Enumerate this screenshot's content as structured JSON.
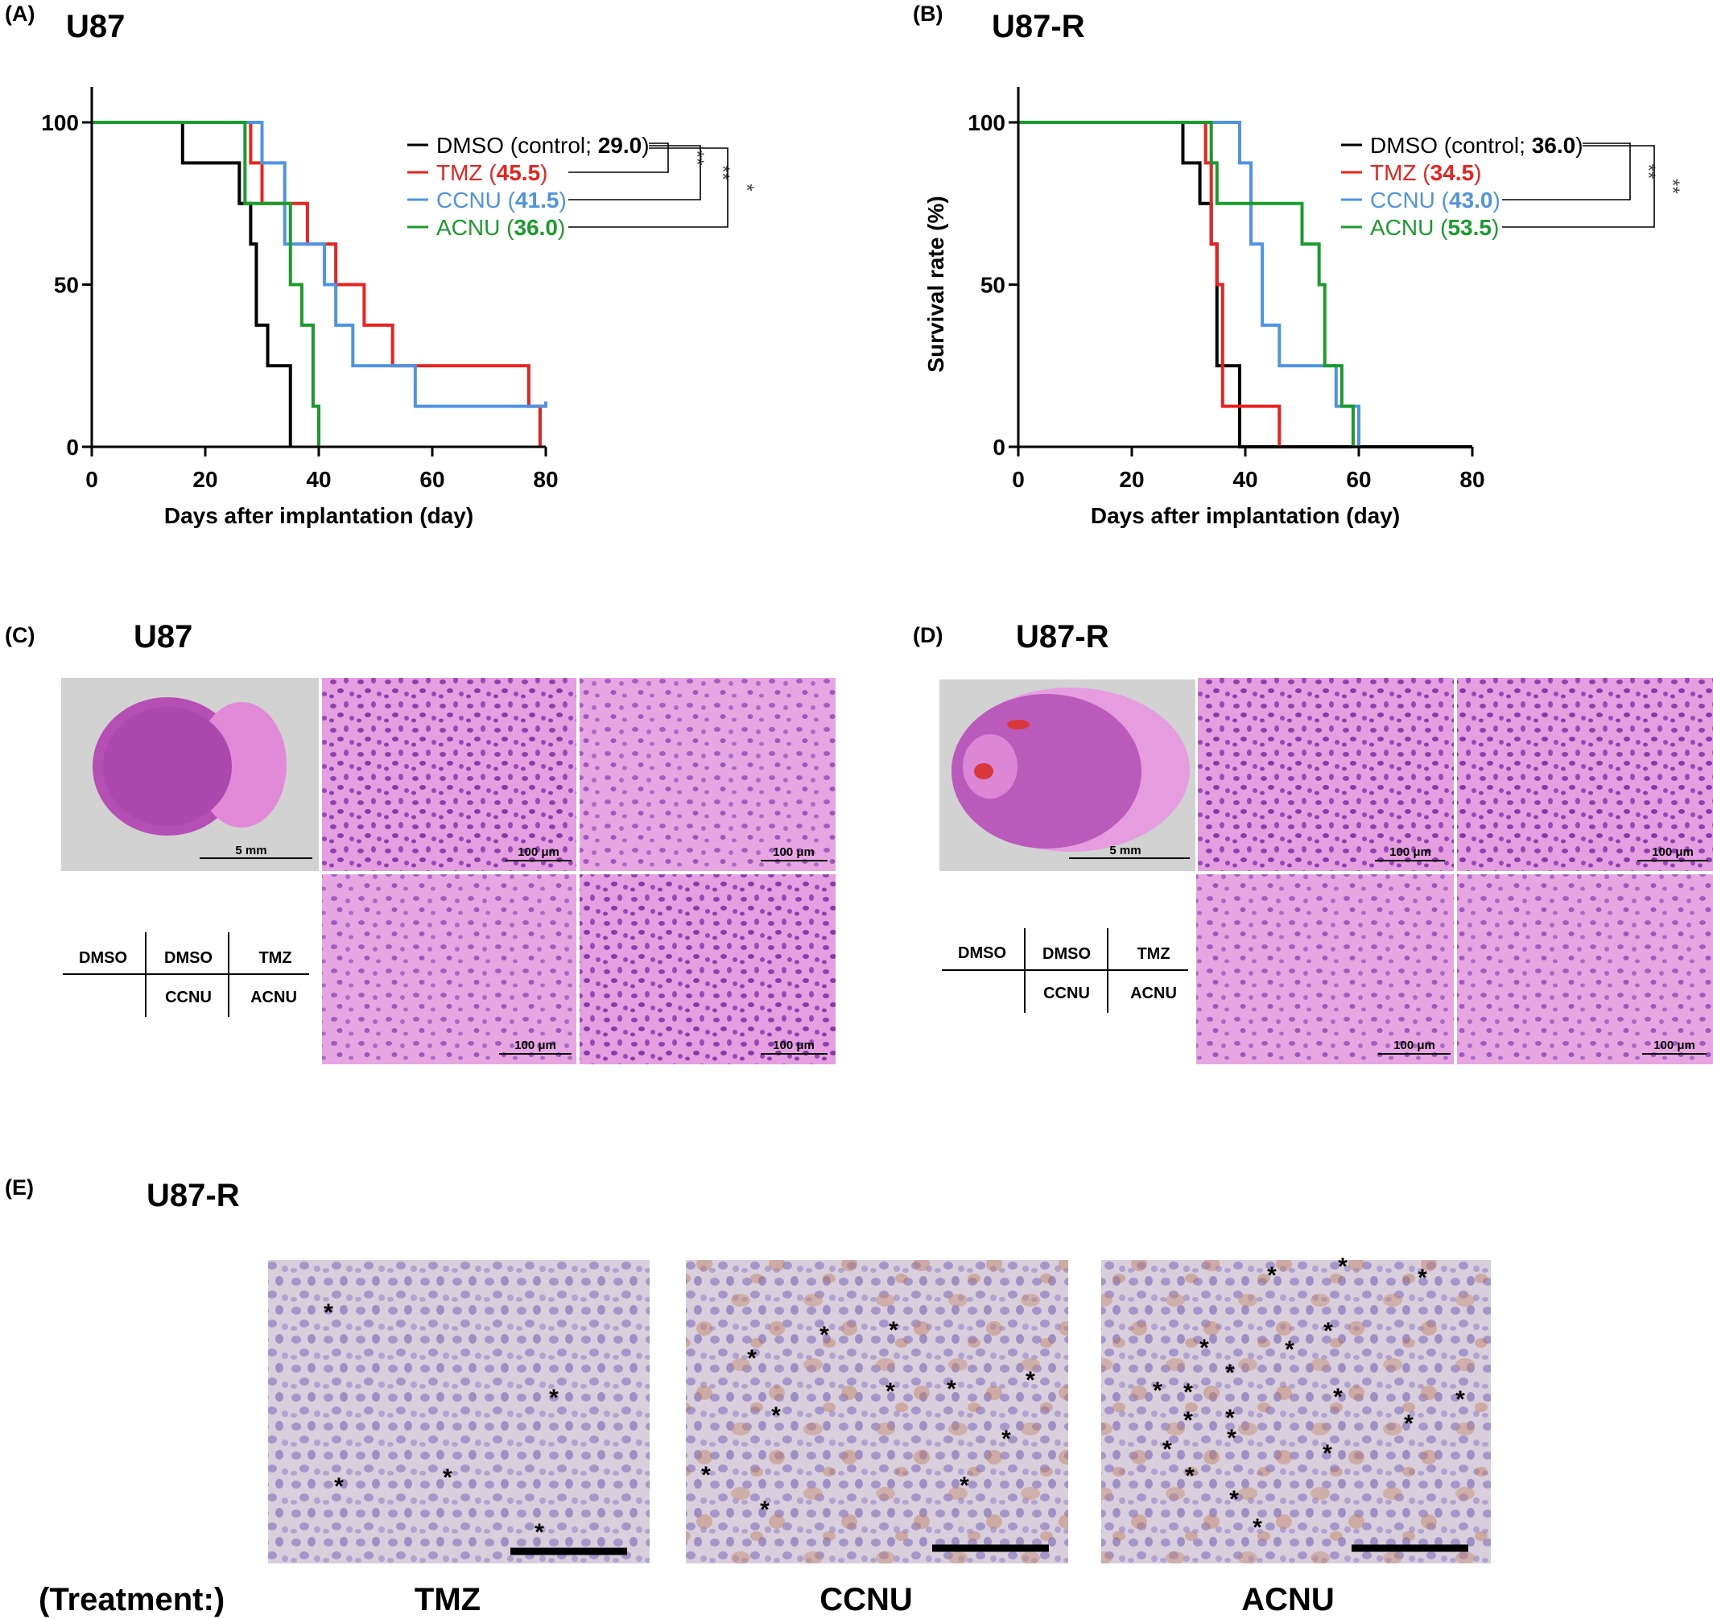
{
  "panels": {
    "A": {
      "label": "(A)",
      "title": "U87"
    },
    "B": {
      "label": "(B)",
      "title": "U87-R"
    },
    "C": {
      "label": "(C)",
      "title": "U87"
    },
    "D": {
      "label": "(D)",
      "title": "U87-R"
    },
    "E": {
      "label": "(E)",
      "title": "U87-R"
    }
  },
  "chart_data": [
    {
      "type": "line",
      "panel": "A",
      "title": "U87",
      "xlabel": "Days after implantation (day)",
      "ylabel": "",
      "xlim": [
        0,
        80
      ],
      "ylim": [
        0,
        100
      ],
      "xticks": [
        "0",
        "20",
        "40",
        "60",
        "80"
      ],
      "yticks": [
        "0",
        "50",
        "100"
      ],
      "step": true,
      "legend_position": "top-right",
      "series": [
        {
          "name": "DMSO",
          "legend_prefix": "DMSO (control; ",
          "median": "29.0",
          "legend_suffix": ")",
          "color": "#000000",
          "x": [
            0,
            16,
            26,
            28,
            29,
            31,
            33,
            35
          ],
          "y": [
            100,
            87.5,
            75,
            62.5,
            37.5,
            25,
            25,
            0
          ]
        },
        {
          "name": "TMZ",
          "legend_prefix": "TMZ (",
          "median": "45.5",
          "legend_suffix": ")",
          "color": "#e8231f",
          "x": [
            0,
            28,
            30,
            38,
            43,
            48,
            53,
            77,
            79
          ],
          "y": [
            100,
            87.5,
            75,
            62.5,
            50,
            37.5,
            25,
            12.5,
            0
          ]
        },
        {
          "name": "CCNU",
          "legend_prefix": "CCNU (",
          "median": "41.5",
          "legend_suffix": ")",
          "color": "#4f94e0",
          "x": [
            0,
            28,
            30,
            34,
            36,
            41,
            43,
            46,
            57,
            80
          ],
          "y": [
            100,
            100,
            87.5,
            62.5,
            62.5,
            50,
            37.5,
            25,
            12.5,
            14
          ]
        },
        {
          "name": "ACNU",
          "legend_prefix": "ACNU (",
          "median": "36.0",
          "legend_suffix": ")",
          "color": "#1a9c2c",
          "x": [
            0,
            27,
            35,
            37,
            39,
            40
          ],
          "y": [
            100,
            75,
            50,
            37.5,
            12.5,
            0
          ]
        }
      ],
      "significance": [
        "**",
        "**",
        "*"
      ]
    },
    {
      "type": "line",
      "panel": "B",
      "title": "U87-R",
      "xlabel": "Days after implantation (day)",
      "ylabel": "Survival rate (%)",
      "xlim": [
        0,
        80
      ],
      "ylim": [
        0,
        100
      ],
      "xticks": [
        "0",
        "20",
        "40",
        "60",
        "80"
      ],
      "yticks": [
        "0",
        "50",
        "100"
      ],
      "step": true,
      "legend_position": "top-right",
      "series": [
        {
          "name": "DMSO",
          "legend_prefix": "DMSO (control; ",
          "median": "36.0",
          "legend_suffix": ")",
          "color": "#000000",
          "x": [
            0,
            29,
            32,
            34,
            35,
            37,
            39,
            80
          ],
          "y": [
            100,
            87.5,
            75,
            62.5,
            25,
            25,
            0,
            0
          ]
        },
        {
          "name": "TMZ",
          "legend_prefix": "TMZ (",
          "median": "34.5",
          "legend_suffix": ")",
          "color": "#e8231f",
          "x": [
            0,
            33,
            34,
            35,
            36,
            40,
            46
          ],
          "y": [
            100,
            87.5,
            62.5,
            50,
            12.5,
            12.5,
            0
          ]
        },
        {
          "name": "CCNU",
          "legend_prefix": "CCNU (",
          "median": "43.0",
          "legend_suffix": ")",
          "color": "#4f94e0",
          "x": [
            0,
            35,
            39,
            41,
            43,
            46,
            55,
            56,
            60
          ],
          "y": [
            100,
            100,
            87.5,
            62.5,
            37.5,
            25,
            25,
            12.5,
            0
          ]
        },
        {
          "name": "ACNU",
          "legend_prefix": "ACNU (",
          "median": "53.5",
          "legend_suffix": ")",
          "color": "#1a9c2c",
          "x": [
            0,
            34,
            35,
            50,
            53,
            54,
            57,
            59,
            60
          ],
          "y": [
            100,
            87.5,
            75,
            62.5,
            50,
            25,
            12.5,
            0,
            0
          ]
        }
      ],
      "significance": [
        "**",
        "**"
      ]
    }
  ],
  "histology": {
    "scale_5mm": "5 mm",
    "scale_100um": "100 μm",
    "table": {
      "r1": [
        "DMSO",
        "DMSO",
        "TMZ"
      ],
      "r2": [
        "",
        "CCNU",
        "ACNU"
      ]
    }
  },
  "ihc": {
    "treatment_label": "(Treatment:)",
    "columns": [
      "TMZ",
      "CCNU",
      "ACNU"
    ],
    "star": "*"
  }
}
